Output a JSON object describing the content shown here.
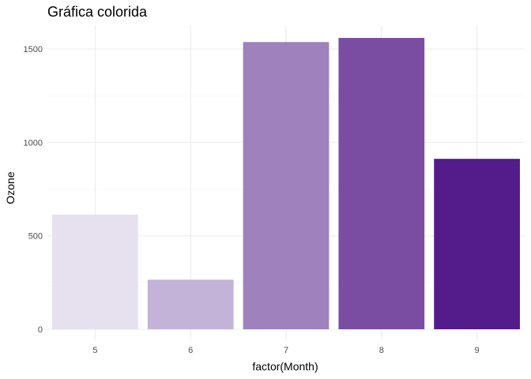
{
  "chart_data": {
    "type": "bar",
    "title": "Gráfica colorida",
    "xlabel": "factor(Month)",
    "ylabel": "Ozone",
    "categories": [
      "5",
      "6",
      "7",
      "8",
      "9"
    ],
    "values": [
      614,
      265,
      1537,
      1559,
      912
    ],
    "colors": [
      "#e7e1ef",
      "#c3b3d8",
      "#9e81bd",
      "#7a4da2",
      "#541b8b"
    ],
    "ylim": [
      0,
      1640
    ],
    "yticks": [
      0,
      500,
      1000,
      1500
    ],
    "yticks_label": [
      "0",
      "500",
      "1000",
      "1500"
    ],
    "grid": true,
    "legend": "none"
  }
}
